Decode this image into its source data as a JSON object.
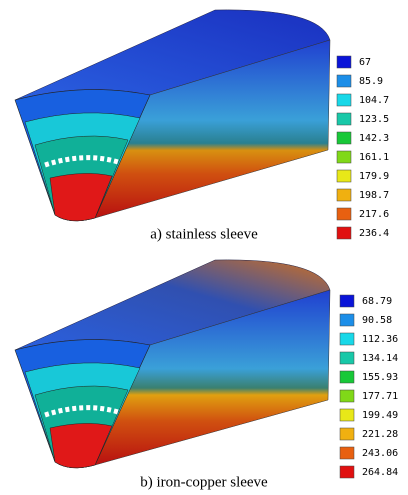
{
  "panels": [
    {
      "caption": "a) stainless sleeve",
      "legend": {
        "labels": [
          "67",
          "85.9",
          "104.7",
          "123.5",
          "142.3",
          "161.1",
          "179.9",
          "198.7",
          "217.6",
          "236.4"
        ],
        "colors": [
          "#0a14d8",
          "#1c8ee8",
          "#18d8e8",
          "#18c8a8",
          "#18c838",
          "#80d818",
          "#e8e818",
          "#f0b010",
          "#e86010",
          "#e01010"
        ]
      }
    },
    {
      "caption": "b) iron-copper sleeve",
      "legend": {
        "labels": [
          "68.79",
          "90.58",
          "112.36",
          "134.14",
          "155.93",
          "177.71",
          "199.49",
          "221.28",
          "243.06",
          "264.84"
        ],
        "colors": [
          "#0a14d8",
          "#1c8ee8",
          "#18d8e8",
          "#18c8a8",
          "#18c838",
          "#80d818",
          "#e8e818",
          "#f0b010",
          "#e86010",
          "#e01010"
        ]
      }
    }
  ]
}
